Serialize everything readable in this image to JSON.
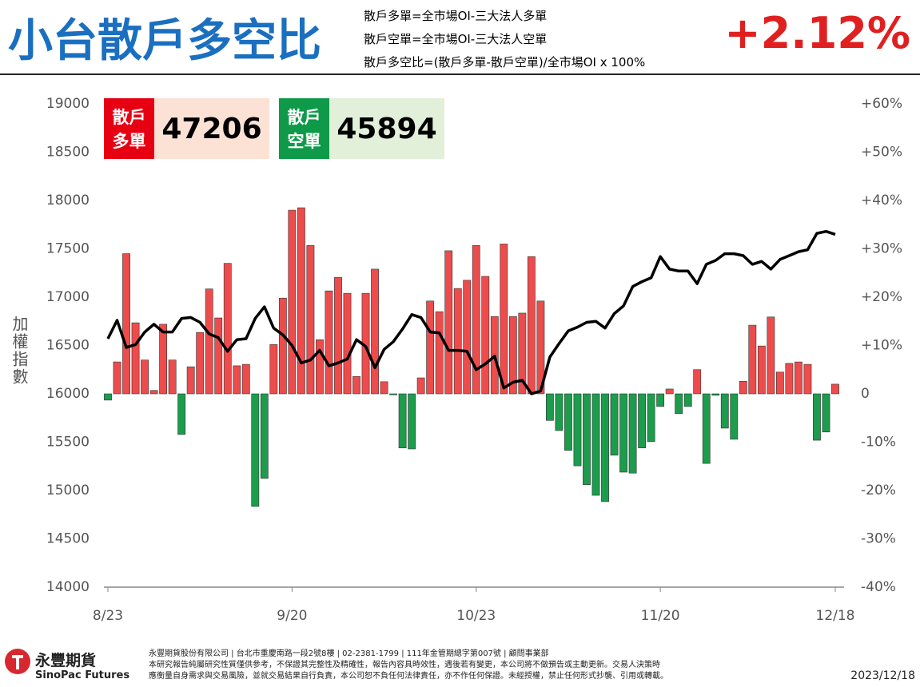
{
  "header": {
    "title": "小台散戶多空比",
    "formulas": [
      "散戶多單=全市場OI-三大法人多單",
      "散戶空單=全市場OI-三大法人空單",
      "散戶多空比=(散戶多單-散戶空單)/全市場OI x 100%"
    ],
    "change": "+2.12%"
  },
  "boxes": [
    {
      "label": "散戶\n多單",
      "value": 47206
    },
    {
      "label": "散戶\n空單",
      "value": 45894
    }
  ],
  "chart_data": {
    "type": "combo",
    "y_label": "加權指數",
    "categories": [
      "8/23",
      null,
      null,
      null,
      null,
      null,
      null,
      null,
      null,
      null,
      null,
      null,
      null,
      null,
      null,
      null,
      null,
      null,
      null,
      null,
      "9/20",
      null,
      null,
      null,
      null,
      null,
      null,
      null,
      null,
      null,
      null,
      null,
      null,
      null,
      null,
      null,
      null,
      null,
      null,
      null,
      "10/23",
      null,
      null,
      null,
      null,
      null,
      null,
      null,
      null,
      null,
      null,
      null,
      null,
      null,
      null,
      null,
      null,
      null,
      null,
      null,
      "11/20",
      null,
      null,
      null,
      null,
      null,
      null,
      null,
      null,
      null,
      null,
      null,
      null,
      null,
      null,
      null,
      null,
      null,
      null,
      "12/18"
    ],
    "series": [
      {
        "name": "散戶多空比",
        "type": "bar",
        "axis": "y2",
        "pos_color": "#ec4c4c",
        "neg_color": "#1c9c4c",
        "values": [
          -1.3,
          6.6,
          29,
          14.7,
          7,
          0.7,
          14.4,
          7,
          -8.4,
          5.6,
          12.7,
          21.7,
          15.7,
          27,
          5.8,
          6.1,
          -23.3,
          -17.5,
          10.2,
          19.8,
          38,
          38.5,
          30.7,
          11.2,
          21.3,
          24.1,
          20.8,
          3.6,
          20.8,
          25.8,
          2.5,
          -0.2,
          -11.2,
          -11.4,
          3.3,
          19.2,
          17,
          29.6,
          21.8,
          23.5,
          30.7,
          24.3,
          16,
          31,
          16,
          16.7,
          28.4,
          19.2,
          -5.5,
          -7.6,
          -11.7,
          -14.9,
          -18.8,
          -21,
          -22.3,
          -12.7,
          -16.2,
          -16.4,
          -11.2,
          -9.9,
          -2.6,
          1,
          -4.1,
          -2.6,
          5,
          -14.4,
          -0.3,
          -7.1,
          -9.4,
          2.6,
          14.2,
          9.9,
          15.9,
          4.5,
          6.3,
          6.6,
          6.1,
          -9.6,
          -7.9,
          2
        ]
      },
      {
        "name": "加權指數",
        "type": "line",
        "axis": "y",
        "color": "#000000",
        "values": [
          16570,
          16760,
          16480,
          16510,
          16640,
          16720,
          16640,
          16640,
          16780,
          16790,
          16740,
          16620,
          16580,
          16440,
          16560,
          16570,
          16780,
          16900,
          16680,
          16610,
          16500,
          16320,
          16350,
          16450,
          16290,
          16320,
          16360,
          16560,
          16490,
          16270,
          16460,
          16540,
          16670,
          16820,
          16790,
          16640,
          16630,
          16450,
          16450,
          16440,
          16250,
          16310,
          16390,
          16060,
          16120,
          16140,
          16000,
          16030,
          16380,
          16520,
          16650,
          16690,
          16740,
          16750,
          16680,
          16830,
          16910,
          17110,
          17160,
          17200,
          17420,
          17290,
          17270,
          17270,
          17140,
          17340,
          17380,
          17450,
          17450,
          17430,
          17340,
          17370,
          17290,
          17390,
          17430,
          17470,
          17490,
          17660,
          17680,
          17650
        ]
      }
    ],
    "ylim": [
      14000,
      19000
    ],
    "yticks": [
      14000,
      14500,
      15000,
      15500,
      16000,
      16500,
      17000,
      17500,
      18000,
      18500,
      19000
    ],
    "y2lim": [
      -40,
      60
    ],
    "y2ticks": [
      {
        "value": -40,
        "label": "-40%"
      },
      {
        "value": -30,
        "label": "-30%"
      },
      {
        "value": -20,
        "label": "-20%"
      },
      {
        "value": -10,
        "label": "-10%"
      },
      0,
      {
        "value": 10,
        "label": "+10%"
      },
      {
        "value": 20,
        "label": "+20%"
      },
      {
        "value": 30,
        "label": "+30%"
      },
      {
        "value": 40,
        "label": "+40%"
      },
      {
        "value": 50,
        "label": "+50%"
      },
      {
        "value": 60,
        "label": "+60%"
      }
    ]
  },
  "footer": {
    "brand": "永豐期貨",
    "brand_en": "SinoPac Futures",
    "lines": [
      "永豐期貨股份有限公司 | 台北市重慶南路一段2號8樓 | 02-2381-1799 | 111年金管期總字第007號 | 顧問事業部",
      "本研究報告純屬研究性質僅供參考，不保證其完整性及精確性，報告內容具時效性，遇後若有變更，本公司將不做預告或主動更新。交易人決策時",
      "應衡量自身需求與交易風險，並就交易結果自行負責，本公司恕不負任何法律責任，亦不作任何保證。未經授權，禁止任何形式抄襲、引用或轉載。"
    ],
    "date": "2023/12/18"
  }
}
